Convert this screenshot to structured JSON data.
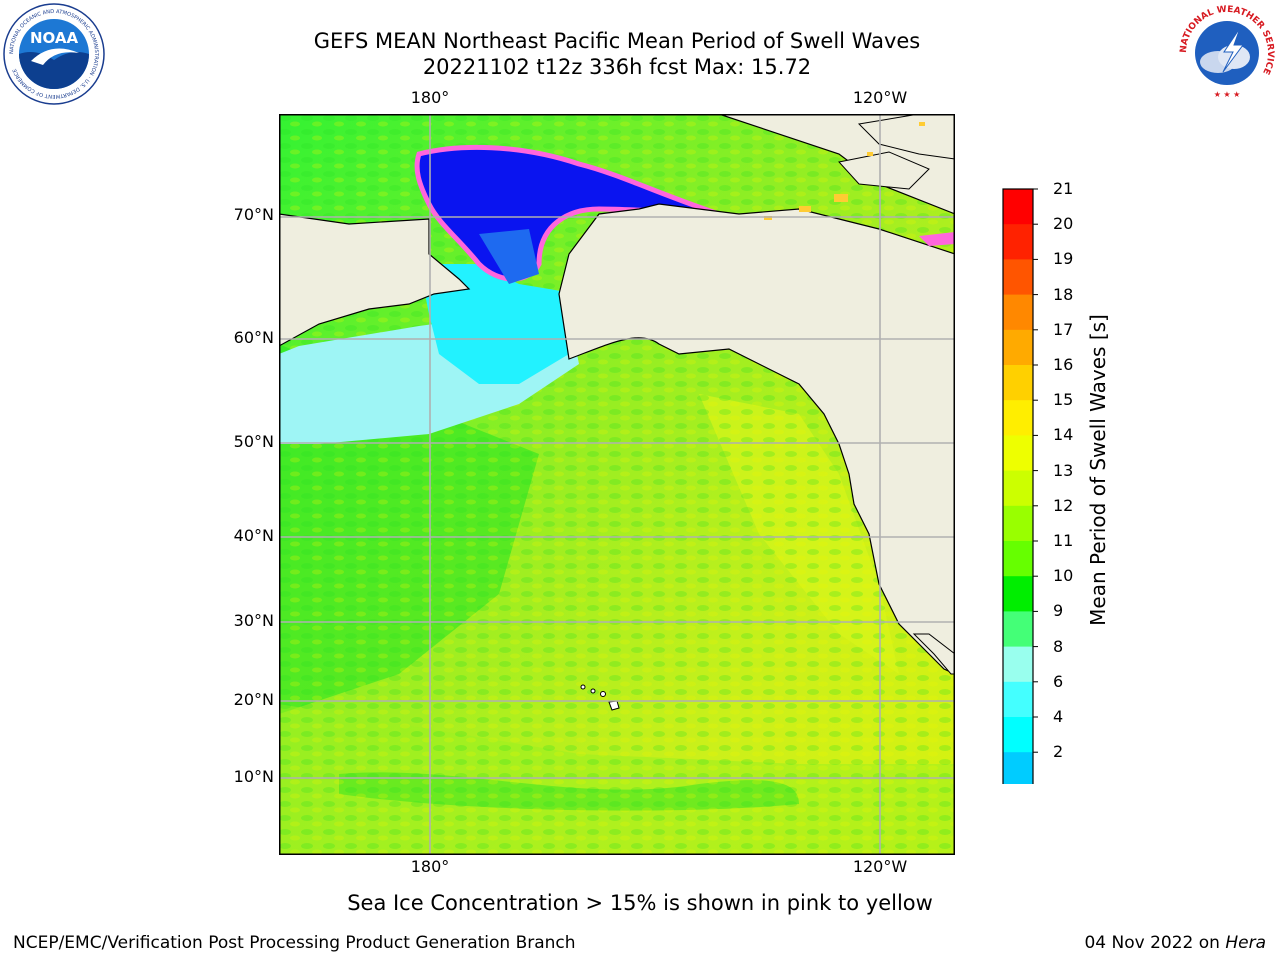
{
  "header": {
    "title_line1": "GEFS MEAN Northeast Pacific Mean Period of Swell Waves",
    "title_line2": "20221102 t12z 336h fcst   Max: 15.72"
  },
  "logos": {
    "noaa": {
      "text": "NOAA",
      "ring_text": "NATIONAL OCEANIC AND ATMOSPHERIC ADMINISTRATION · U.S. DEPARTMENT OF COMMERCE"
    },
    "nws": {
      "ring_text": "NATIONAL WEATHER SERVICE"
    }
  },
  "map": {
    "lon_top": [
      "180°",
      "120°W"
    ],
    "lon_bottom": [
      "180°",
      "120°W"
    ],
    "lat_labels": [
      "70°N",
      "60°N",
      "50°N",
      "40°N",
      "30°N",
      "20°N",
      "10°N"
    ],
    "land_color": "#efeedf",
    "grid_color": "#b0b0b0"
  },
  "colorbar": {
    "label": "Mean Period of Swell Waves [s]",
    "ticks": [
      "21",
      "20",
      "19",
      "18",
      "17",
      "16",
      "15",
      "14",
      "13",
      "12",
      "11",
      "10",
      "9",
      "8",
      "6",
      "4",
      "2"
    ],
    "colors_top_to_bottom": [
      "#ff0000",
      "#ff2200",
      "#ff5500",
      "#ff8800",
      "#ffaa00",
      "#ffd000",
      "#ffee00",
      "#eeff00",
      "#ccff00",
      "#99ff00",
      "#66ff00",
      "#00ee00",
      "#44ff77",
      "#99ffee",
      "#44ffff",
      "#00ffff",
      "#00ccff",
      "#0077ff"
    ],
    "extend_color": "#0000ff"
  },
  "note": "Sea Ice Concentration > 15% is shown in pink to yellow",
  "footer": {
    "left": "NCEP/EMC/Verification Post Processing Product Generation Branch",
    "right_date": "04 Nov 2022 on ",
    "right_host": "Hera"
  }
}
